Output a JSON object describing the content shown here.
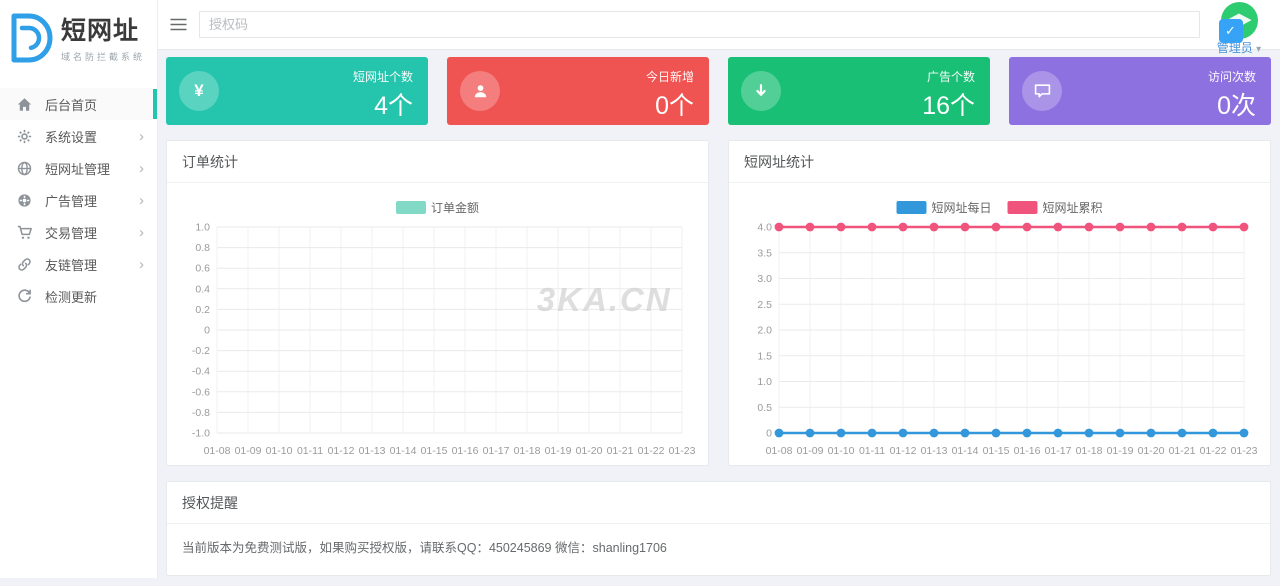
{
  "theme": {
    "teal": "#25c4ac",
    "brand_blue": "#2f9fe8",
    "link_blue": "#4a93d9"
  },
  "brand": {
    "title": "短网址",
    "subtitle": "域名防拦截系统",
    "logo_icon": "double-d-logo"
  },
  "topbar": {
    "search_placeholder": "授权码",
    "menu_icon": "hamburger-icon"
  },
  "user": {
    "name": "管理员",
    "caret": "▾",
    "avatar_color": "#2ecc71",
    "badge_color": "#36a3f7",
    "badge_check": "✓"
  },
  "sidebar": {
    "chevron": "›",
    "items": [
      {
        "label": "后台首页",
        "icon": "home-icon",
        "active": true,
        "has_children": false
      },
      {
        "label": "系统设置",
        "icon": "gear-icon",
        "active": false,
        "has_children": true
      },
      {
        "label": "短网址管理",
        "icon": "globe-icon",
        "active": false,
        "has_children": true
      },
      {
        "label": "广告管理",
        "icon": "ad-gear-icon",
        "active": false,
        "has_children": true
      },
      {
        "label": "交易管理",
        "icon": "cart-icon",
        "active": false,
        "has_children": true
      },
      {
        "label": "友链管理",
        "icon": "link-icon",
        "active": false,
        "has_children": true
      },
      {
        "label": "检测更新",
        "icon": "refresh-icon",
        "active": false,
        "has_children": false
      }
    ]
  },
  "cards": [
    {
      "label": "短网址个数",
      "value": "4个",
      "icon": "yen-icon",
      "glyph": "¥",
      "color": "#25c4ac"
    },
    {
      "label": "今日新增",
      "value": "0个",
      "icon": "user-icon",
      "color": "#ef5352"
    },
    {
      "label": "广告个数",
      "value": "16个",
      "icon": "arrow-down-icon",
      "color": "#18bf74"
    },
    {
      "label": "访问次数",
      "value": "0次",
      "icon": "comment-icon",
      "color": "#8e71e1"
    }
  ],
  "charts": [
    {
      "title": "订单统计",
      "watermark": "3KA.CN",
      "chart_data": {
        "type": "line",
        "x": [
          "01-08",
          "01-09",
          "01-10",
          "01-11",
          "01-12",
          "01-13",
          "01-14",
          "01-15",
          "01-16",
          "01-17",
          "01-18",
          "01-19",
          "01-20",
          "01-21",
          "01-22",
          "01-23"
        ],
        "series": [
          {
            "name": "订单金额",
            "color": "#82d9c6",
            "values": []
          }
        ],
        "ylim": [
          -1,
          1
        ],
        "ytick_values": [
          1,
          0.8,
          0.6,
          0.4,
          0.2,
          0,
          -0.2,
          -0.4,
          -0.6,
          -0.8,
          -1
        ],
        "ytick_labels": [
          "1.0",
          "0.8",
          "0.6",
          "0.4",
          "0.2",
          "0",
          "-0.2",
          "-0.4",
          "-0.6",
          "-0.8",
          "-1.0"
        ],
        "grid": true,
        "legend_position": "top"
      }
    },
    {
      "title": "短网址统计",
      "watermark": "",
      "chart_data": {
        "type": "line",
        "x": [
          "01-08",
          "01-09",
          "01-10",
          "01-11",
          "01-12",
          "01-13",
          "01-14",
          "01-15",
          "01-16",
          "01-17",
          "01-18",
          "01-19",
          "01-20",
          "01-21",
          "01-22",
          "01-23"
        ],
        "series": [
          {
            "name": "短网址每日",
            "color": "#3398db",
            "values": [
              0,
              0,
              0,
              0,
              0,
              0,
              0,
              0,
              0,
              0,
              0,
              0,
              0,
              0,
              0,
              0
            ]
          },
          {
            "name": "短网址累积",
            "color": "#f0537c",
            "values": [
              4,
              4,
              4,
              4,
              4,
              4,
              4,
              4,
              4,
              4,
              4,
              4,
              4,
              4,
              4,
              4
            ]
          }
        ],
        "ylim": [
          0,
          4
        ],
        "ytick_values": [
          4,
          3.5,
          3,
          2.5,
          2,
          1.5,
          1,
          0.5,
          0
        ],
        "ytick_labels": [
          "4.0",
          "3.5",
          "3.0",
          "2.5",
          "2.0",
          "1.5",
          "1.0",
          "0.5",
          "0"
        ],
        "grid": true,
        "legend_position": "top"
      }
    }
  ],
  "notice": {
    "title": "授权提醒",
    "text": "当前版本为免费测试版，如果购买授权版，请联系QQ：450245869 微信：shanling1706"
  }
}
